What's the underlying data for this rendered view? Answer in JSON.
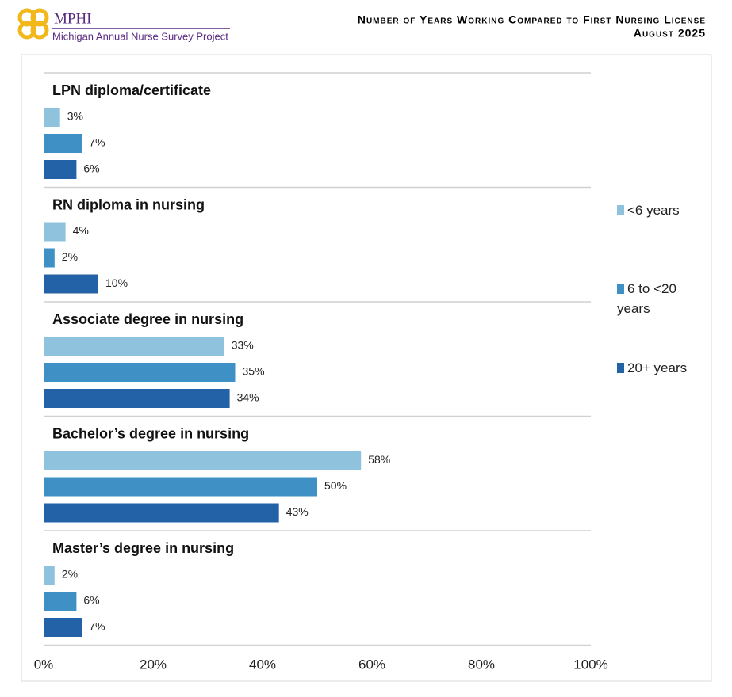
{
  "header": {
    "logo": "MPHI",
    "project": "Michigan Annual Nurse Survey Project"
  },
  "chart_data": {
    "type": "bar",
    "orientation": "horizontal",
    "title": "Number of Years Working Compared to First Nursing License",
    "subtitle": "August 2025",
    "categories": [
      "LPN diploma/certificate",
      "RN diploma in nursing",
      "Associate degree in nursing",
      "Bachelor’s degree in nursing",
      "Master’s degree in nursing"
    ],
    "series": [
      {
        "name": "<6 years",
        "color": "#8fc3dd",
        "values": [
          3,
          4,
          33,
          58,
          2
        ],
        "value_labels": [
          "3%",
          "4%",
          "33%",
          "58%",
          "2%"
        ]
      },
      {
        "name": "6 to <20 years",
        "color": "#3f90c5",
        "values": [
          7,
          2,
          35,
          50,
          6
        ],
        "value_labels": [
          "7%",
          "2%",
          "35%",
          "50%",
          "6%"
        ]
      },
      {
        "name": "20+ years",
        "color": "#2462a8",
        "values": [
          6,
          10,
          34,
          43,
          7
        ],
        "value_labels": [
          "6%",
          "10%",
          "34%",
          "43%",
          "7%"
        ]
      }
    ],
    "xlim": [
      0,
      100
    ],
    "xticks": [
      {
        "value": 0,
        "label": "0%"
      },
      {
        "value": 20,
        "label": "20%"
      },
      {
        "value": 40,
        "label": "40%"
      },
      {
        "value": 60,
        "label": "60%"
      },
      {
        "value": 80,
        "label": "80%"
      },
      {
        "value": 100,
        "label": "100%"
      }
    ],
    "grid": false,
    "legend": "right"
  }
}
